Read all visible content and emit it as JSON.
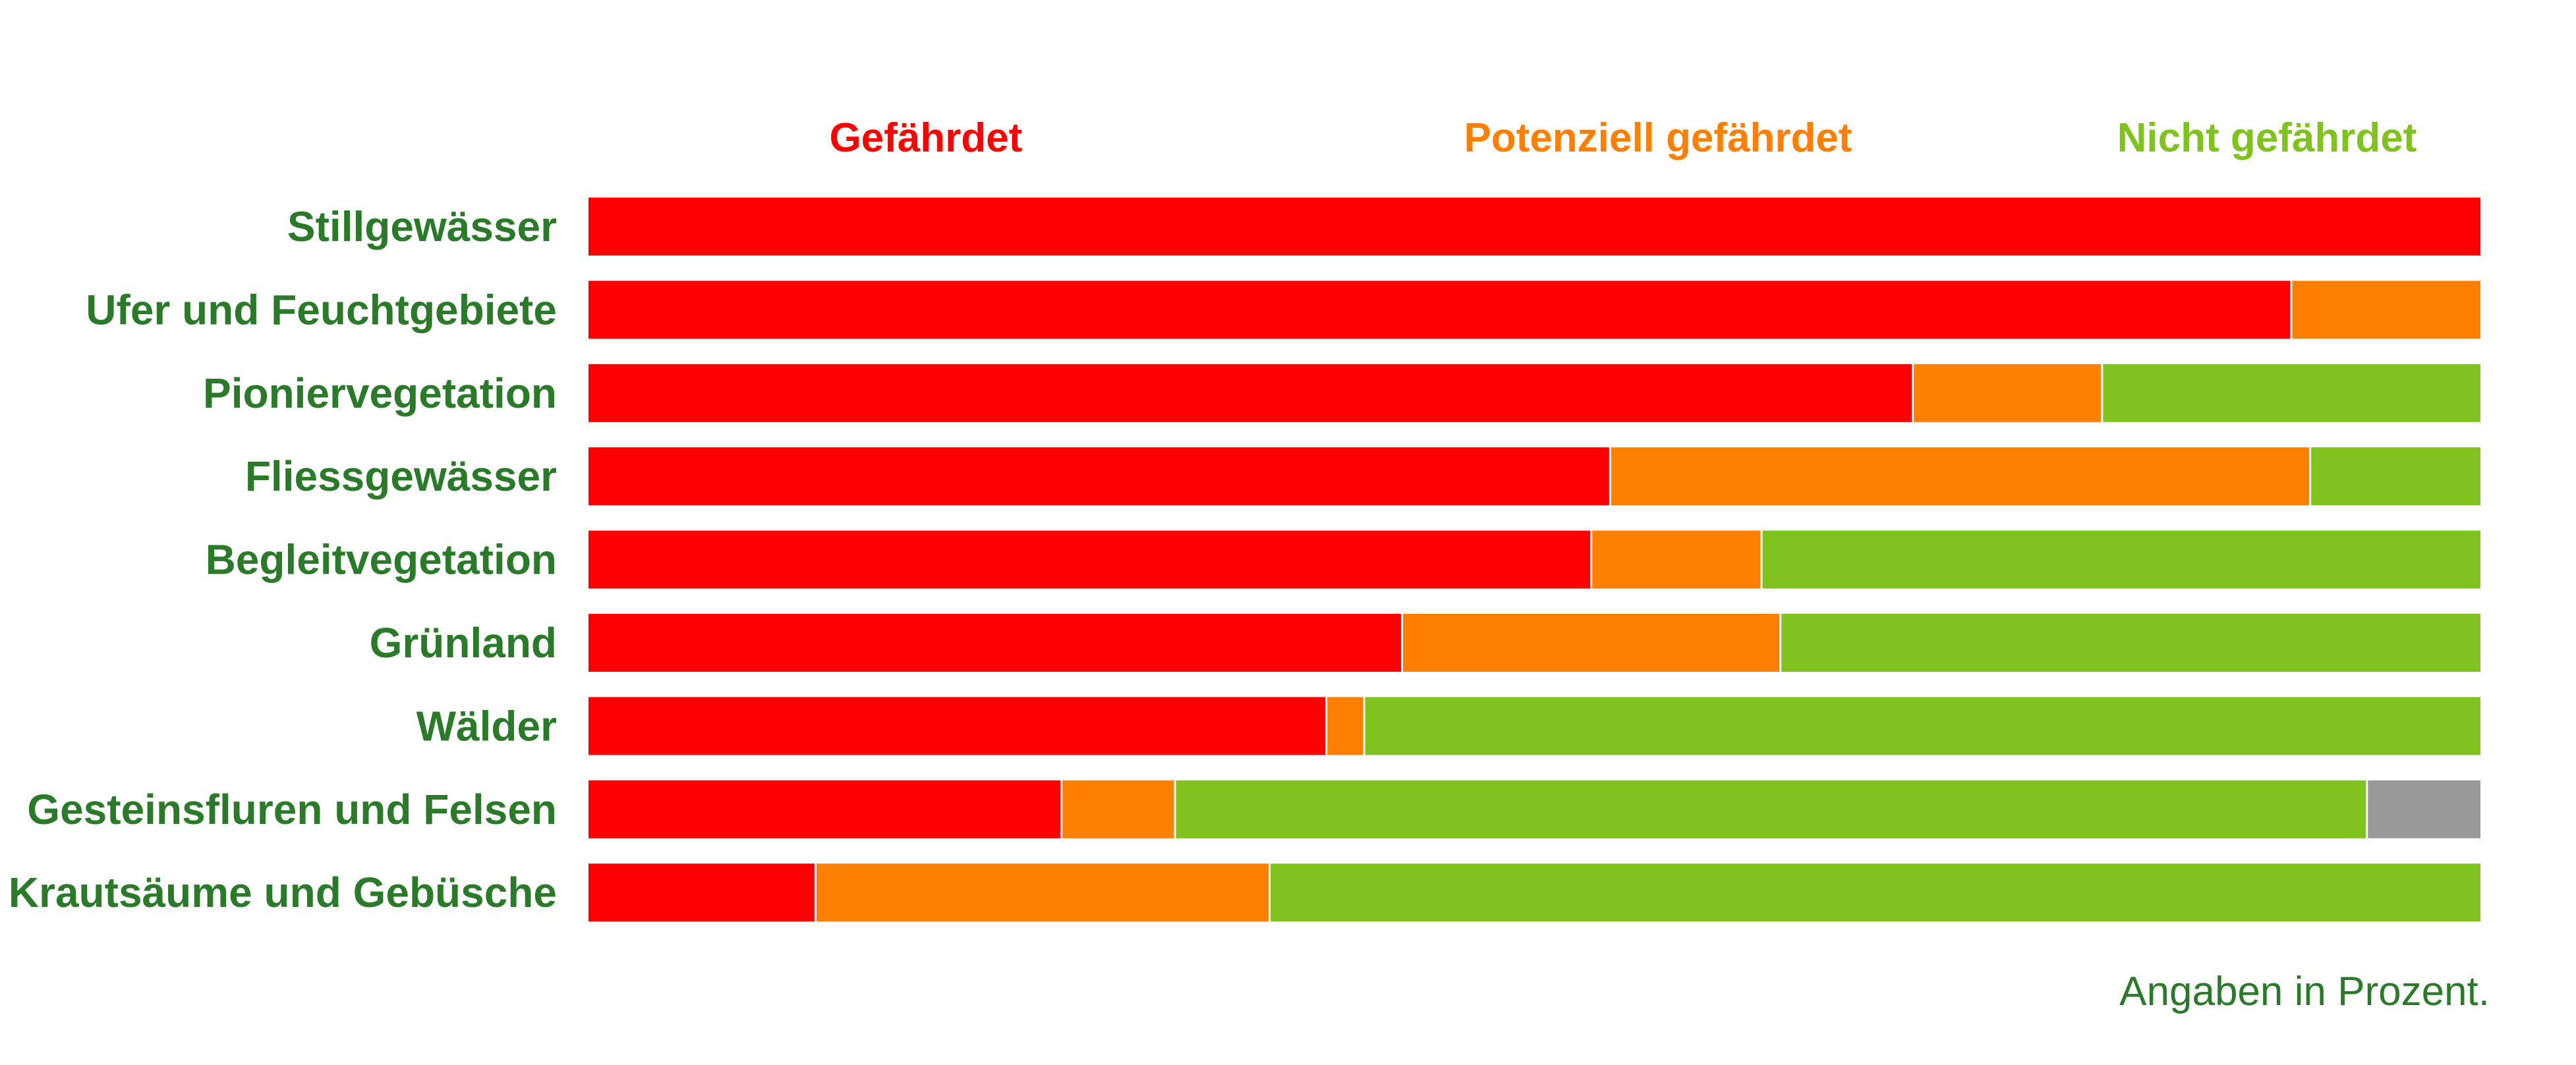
{
  "colors": {
    "text_green": "#2a7a2a",
    "separator": "#ffffff"
  },
  "chart_data": {
    "type": "bar",
    "orientation": "horizontal",
    "stacked": true,
    "xlim": [
      0,
      100
    ],
    "categories": [
      "Stillgewässer",
      "Ufer und Feuchtgebiete",
      "Pioniervegetation",
      "Fliessgewässer",
      "Begleitvegetation",
      "Grünland",
      "Wälder",
      "Gesteinsfluren und Felsen",
      "Krautsäume und Gebüsche"
    ],
    "series": [
      {
        "name": "Gefährdet",
        "color": "#ff0000",
        "values": [
          100,
          90,
          70,
          54,
          53,
          43,
          39,
          25,
          12
        ]
      },
      {
        "name": "Potenziell gefährdet",
        "color": "#ff7f00",
        "values": [
          0,
          10,
          10,
          37,
          9,
          20,
          2,
          6,
          24
        ]
      },
      {
        "name": "Nicht gefährdet",
        "color": "#80c31e",
        "values": [
          0,
          0,
          20,
          9,
          38,
          37,
          59,
          63,
          64
        ]
      },
      {
        "color": "#999999",
        "values": [
          0,
          0,
          0,
          0,
          0,
          0,
          0,
          6,
          0
        ]
      }
    ],
    "legend_position": "top",
    "grid": false,
    "note": "Angaben in Prozent."
  }
}
